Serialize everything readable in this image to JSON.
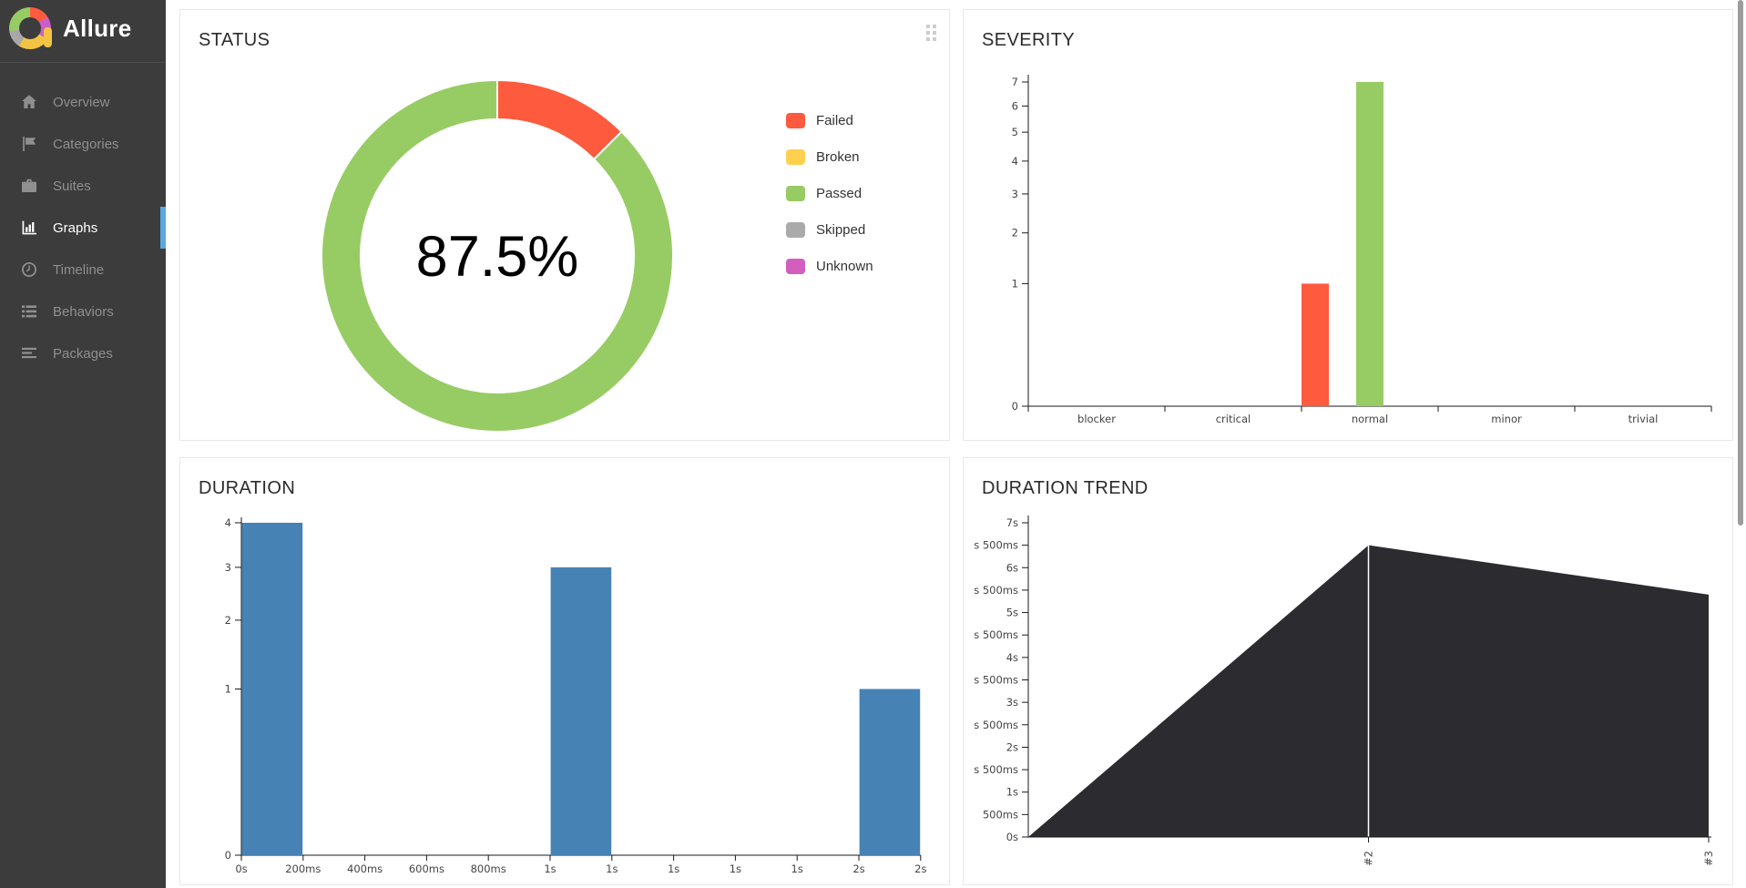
{
  "app": {
    "brand": "Allure"
  },
  "sidebar": {
    "items": [
      {
        "label": "Overview",
        "icon": "home-icon",
        "active": false
      },
      {
        "label": "Categories",
        "icon": "flag-icon",
        "active": false
      },
      {
        "label": "Suites",
        "icon": "briefcase-icon",
        "active": false
      },
      {
        "label": "Graphs",
        "icon": "bar-chart-icon",
        "active": true
      },
      {
        "label": "Timeline",
        "icon": "clock-icon",
        "active": false
      },
      {
        "label": "Behaviors",
        "icon": "list-icon",
        "active": false
      },
      {
        "label": "Packages",
        "icon": "align-left-icon",
        "active": false
      }
    ],
    "active_indicator_color": "#58a9e0"
  },
  "panels": {
    "status": {
      "title": "STATUS",
      "center_label": "87.5%",
      "legend": [
        {
          "label": "Failed",
          "color": "#fd5a3e"
        },
        {
          "label": "Broken",
          "color": "#ffd050"
        },
        {
          "label": "Passed",
          "color": "#97cc64"
        },
        {
          "label": "Skipped",
          "color": "#aaaaaa"
        },
        {
          "label": "Unknown",
          "color": "#d35ebe"
        }
      ]
    },
    "severity": {
      "title": "SEVERITY"
    },
    "duration": {
      "title": "DURATION"
    },
    "duration_trend": {
      "title": "DURATION TREND"
    }
  },
  "chart_data": [
    {
      "type": "pie",
      "title": "STATUS",
      "center_label": "87.5%",
      "slices": [
        {
          "label": "Failed",
          "value": 1,
          "percent": 12.5,
          "color": "#fd5a3e"
        },
        {
          "label": "Passed",
          "value": 7,
          "percent": 87.5,
          "color": "#97cc64"
        }
      ]
    },
    {
      "type": "bar",
      "title": "SEVERITY",
      "categories": [
        "blocker",
        "critical",
        "normal",
        "minor",
        "trivial"
      ],
      "statuses": [
        "failed",
        "broken",
        "passed",
        "skipped",
        "unknown"
      ],
      "series": [
        {
          "name": "failed",
          "color": "#fd5a3e",
          "values": [
            0,
            0,
            1,
            0,
            0
          ]
        },
        {
          "name": "passed",
          "color": "#97cc64",
          "values": [
            0,
            0,
            7,
            0,
            0
          ]
        }
      ],
      "yticks": [
        0,
        1,
        2,
        3,
        4,
        5,
        6,
        7
      ],
      "ylim": [
        0,
        7
      ],
      "yscale": "sqrt",
      "grid": false
    },
    {
      "type": "bar",
      "title": "DURATION",
      "x_tick_labels": [
        "0s",
        "200ms",
        "400ms",
        "600ms",
        "800ms",
        "1s",
        "1s",
        "1s",
        "1s",
        "1s",
        "2s",
        "2s"
      ],
      "bin_values": [
        4,
        0,
        0,
        0,
        0,
        3,
        0,
        0,
        0,
        0,
        1
      ],
      "color": "#4682b4",
      "yticks": [
        0,
        1,
        2,
        3,
        4
      ],
      "ylim": [
        0,
        4
      ],
      "yscale": "sqrt",
      "grid": false
    },
    {
      "type": "area",
      "title": "DURATION TREND",
      "points": [
        {
          "label": "",
          "seconds": 0
        },
        {
          "label": "#2",
          "seconds": 6.5
        },
        {
          "label": "#3",
          "seconds": 5.4
        }
      ],
      "y_tick_labels_bottom_to_top": [
        "0s",
        "500ms",
        "1s",
        "s 500ms",
        "2s",
        "s 500ms",
        "3s",
        "s 500ms",
        "4s",
        "s 500ms",
        "5s",
        "s 500ms",
        "6s",
        "s 500ms",
        "7s"
      ],
      "ylim_seconds": [
        0,
        7
      ],
      "color": "#2b2b30",
      "marker_line_color": "#ffffff"
    }
  ]
}
